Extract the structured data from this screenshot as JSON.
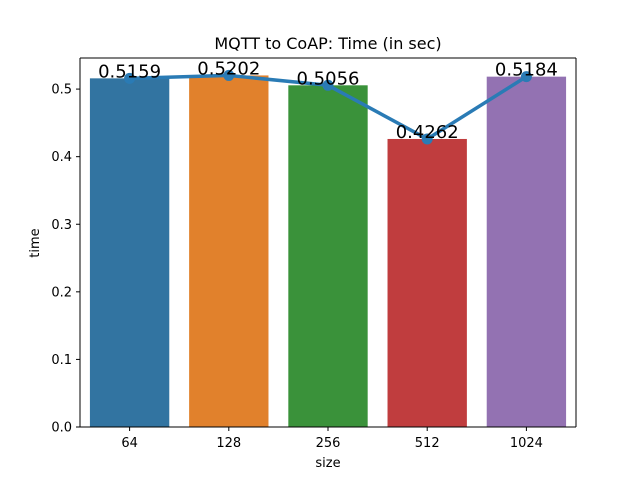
{
  "chart_data": {
    "type": "bar",
    "title": "MQTT to CoAP: Time (in sec)",
    "xlabel": "size",
    "ylabel": "time",
    "categories": [
      "64",
      "128",
      "256",
      "512",
      "1024"
    ],
    "values": [
      0.5159,
      0.5202,
      0.5056,
      0.4262,
      0.5184
    ],
    "data_labels": [
      "0.5159",
      "0.5202",
      "0.5056",
      "0.4262",
      "0.5184"
    ],
    "ylim": [
      0,
      0.546
    ],
    "yticks": [
      0.0,
      0.1,
      0.2,
      0.3,
      0.4,
      0.5
    ],
    "ytick_labels": [
      "0.0",
      "0.1",
      "0.2",
      "0.3",
      "0.4",
      "0.5"
    ],
    "bar_colors": [
      "#3274a1",
      "#e1812c",
      "#3a923a",
      "#c03d3e",
      "#9372b2"
    ],
    "line_color": "#2a7bb5",
    "overlay": "line-with-markers",
    "grid": false,
    "legend": "none"
  }
}
